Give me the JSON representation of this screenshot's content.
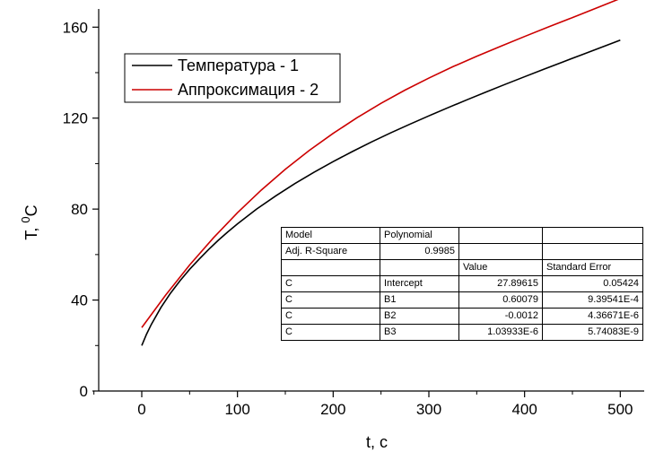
{
  "chart_data": {
    "type": "line",
    "xlabel": "t, c",
    "ylabel_main": "T, ",
    "ylabel_sup": "0",
    "ylabel_unit": "C",
    "xlim": [
      -45,
      525
    ],
    "ylim": [
      0,
      168
    ],
    "x_ticks": [
      0,
      100,
      200,
      300,
      400,
      500
    ],
    "y_ticks": [
      0,
      40,
      80,
      120,
      160
    ],
    "grid": false,
    "legend_position": "top-left",
    "series": [
      {
        "name": "Температура - 1",
        "color": "#000000",
        "x": [
          0,
          5,
          10,
          20,
          30,
          40,
          50,
          60,
          70,
          80,
          90,
          100,
          120,
          140,
          160,
          180,
          200,
          220,
          240,
          260,
          280,
          300,
          320,
          340,
          360,
          380,
          400,
          420,
          440,
          460,
          480,
          500
        ],
        "y": [
          20,
          25,
          29.3,
          36.7,
          43,
          48.5,
          53.5,
          58,
          62.3,
          66.3,
          70,
          73.5,
          80,
          85.8,
          91.2,
          96.2,
          100.9,
          105.3,
          109.5,
          113.5,
          117.3,
          121,
          124.6,
          128.1,
          131.5,
          134.9,
          138.2,
          141.5,
          144.7,
          147.9,
          151.1,
          154.3
        ]
      },
      {
        "name": "Аппроксимация - 2",
        "color": "#cc0000",
        "x": [
          0,
          25,
          50,
          75,
          100,
          125,
          150,
          175,
          200,
          225,
          250,
          275,
          300,
          325,
          350,
          375,
          400,
          425,
          450,
          475,
          500
        ],
        "y": [
          27.9,
          42.2,
          55.4,
          67.4,
          78.4,
          88.4,
          97.5,
          105.8,
          113.3,
          120.2,
          126.5,
          132.3,
          137.6,
          142.6,
          147.2,
          151.6,
          155.9,
          160.1,
          164.2,
          168.4,
          172.6
        ]
      }
    ],
    "fit_table": [
      [
        "Model",
        "Polynomial",
        "",
        ""
      ],
      [
        "Adj. R-Square",
        "0.9985",
        "",
        ""
      ],
      [
        "",
        "",
        "Value",
        "Standard Error"
      ],
      [
        "C",
        "Intercept",
        "27.89615",
        "0.05424"
      ],
      [
        "C",
        "B1",
        "0.60079",
        "9.39541E-4"
      ],
      [
        "C",
        "B2",
        "-0.0012",
        "4.36671E-6"
      ],
      [
        "C",
        "B3",
        "1.03933E-6",
        "5.74083E-9"
      ]
    ]
  }
}
